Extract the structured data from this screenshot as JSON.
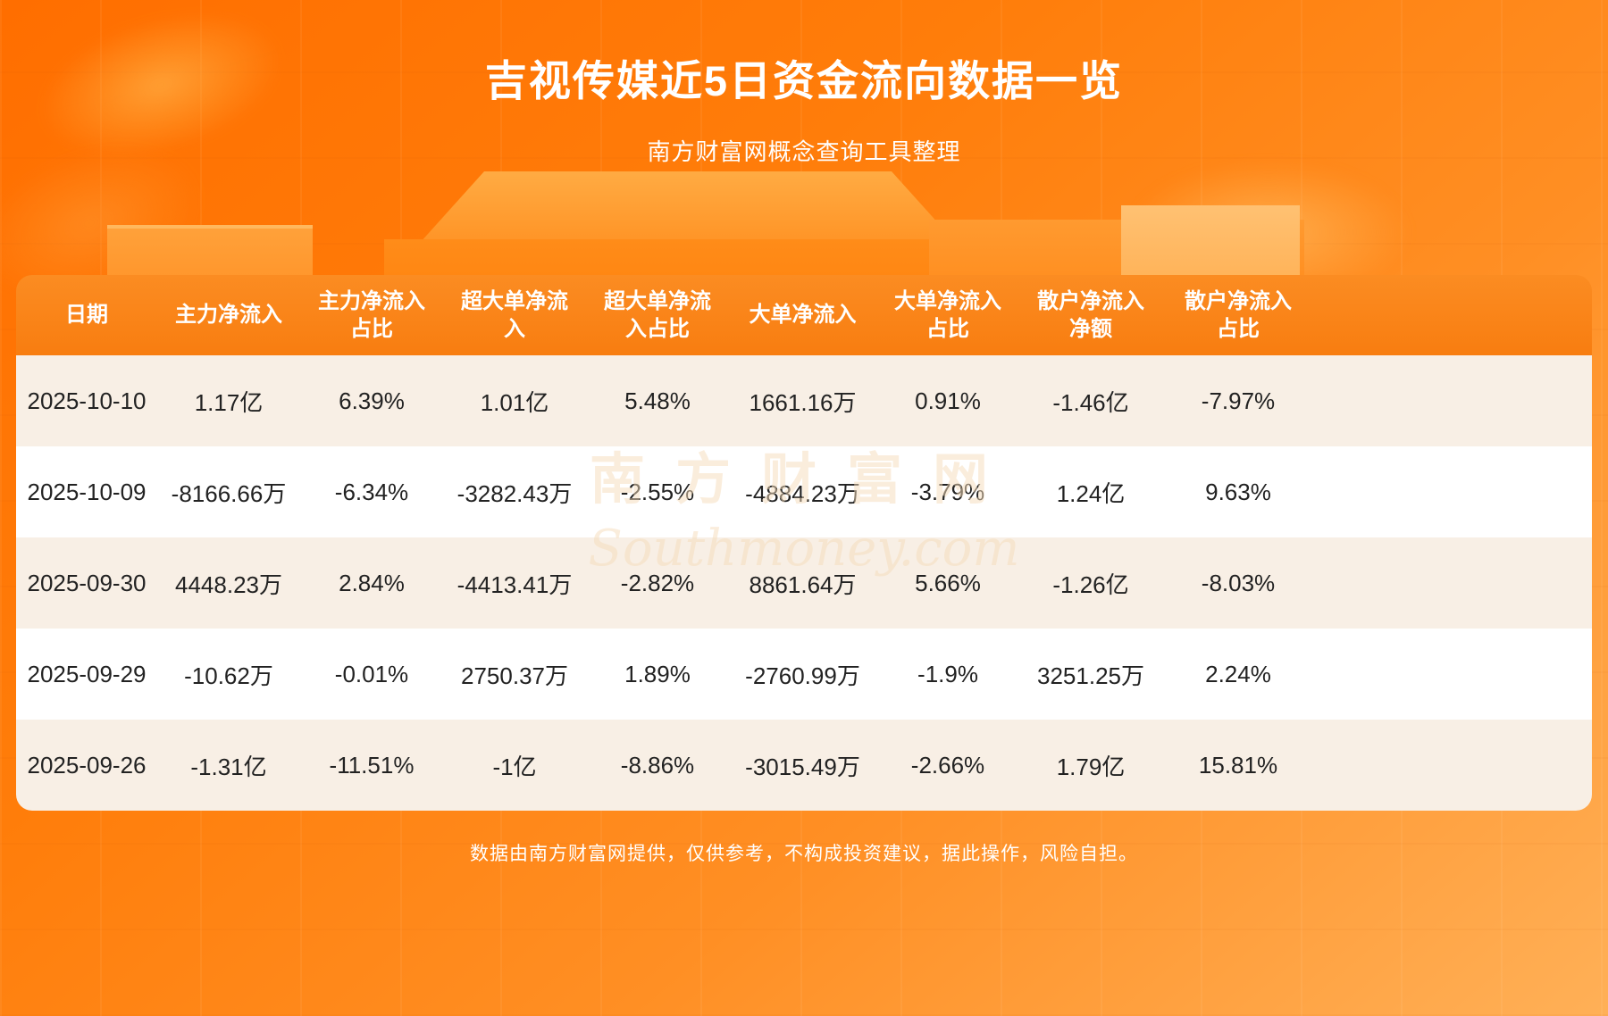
{
  "page": {
    "title": "吉视传媒近5日资金流向数据一览",
    "subtitle": "南方财富网概念查询工具整理",
    "footer": "数据由南方财富网提供，仅供参考，不构成投资建议，据此操作，风险自担。"
  },
  "watermark": {
    "cn": "南方财富网",
    "en": "Southmoney.com"
  },
  "colors": {
    "background_top": "#ff6e00",
    "background_bottom": "#ffb057",
    "table_header_bg": "#f87d10",
    "row_cream": "#f8efe5",
    "row_white": "#ffffff",
    "text_dark": "#222222",
    "text_white": "#ffffff"
  },
  "chart_data": {
    "type": "table",
    "title": "吉视传媒近5日资金流向数据一览",
    "columns": [
      "日期",
      "主力净流入",
      "主力净流入占比",
      "超大单净流入",
      "超大单净流入占比",
      "大单净流入",
      "大单净流入占比",
      "散户净流入净额",
      "散户净流入占比"
    ],
    "rows": [
      [
        "2025-10-10",
        "1.17亿",
        "6.39%",
        "1.01亿",
        "5.48%",
        "1661.16万",
        "0.91%",
        "-1.46亿",
        "-7.97%"
      ],
      [
        "2025-10-09",
        "-8166.66万",
        "-6.34%",
        "-3282.43万",
        "-2.55%",
        "-4884.23万",
        "-3.79%",
        "1.24亿",
        "9.63%"
      ],
      [
        "2025-09-30",
        "4448.23万",
        "2.84%",
        "-4413.41万",
        "-2.82%",
        "8861.64万",
        "5.66%",
        "-1.26亿",
        "-8.03%"
      ],
      [
        "2025-09-29",
        "-10.62万",
        "-0.01%",
        "2750.37万",
        "1.89%",
        "-2760.99万",
        "-1.9%",
        "3251.25万",
        "2.24%"
      ],
      [
        "2025-09-26",
        "-1.31亿",
        "-11.51%",
        "-1亿",
        "-8.86%",
        "-3015.49万",
        "-2.66%",
        "1.79亿",
        "15.81%"
      ]
    ]
  }
}
